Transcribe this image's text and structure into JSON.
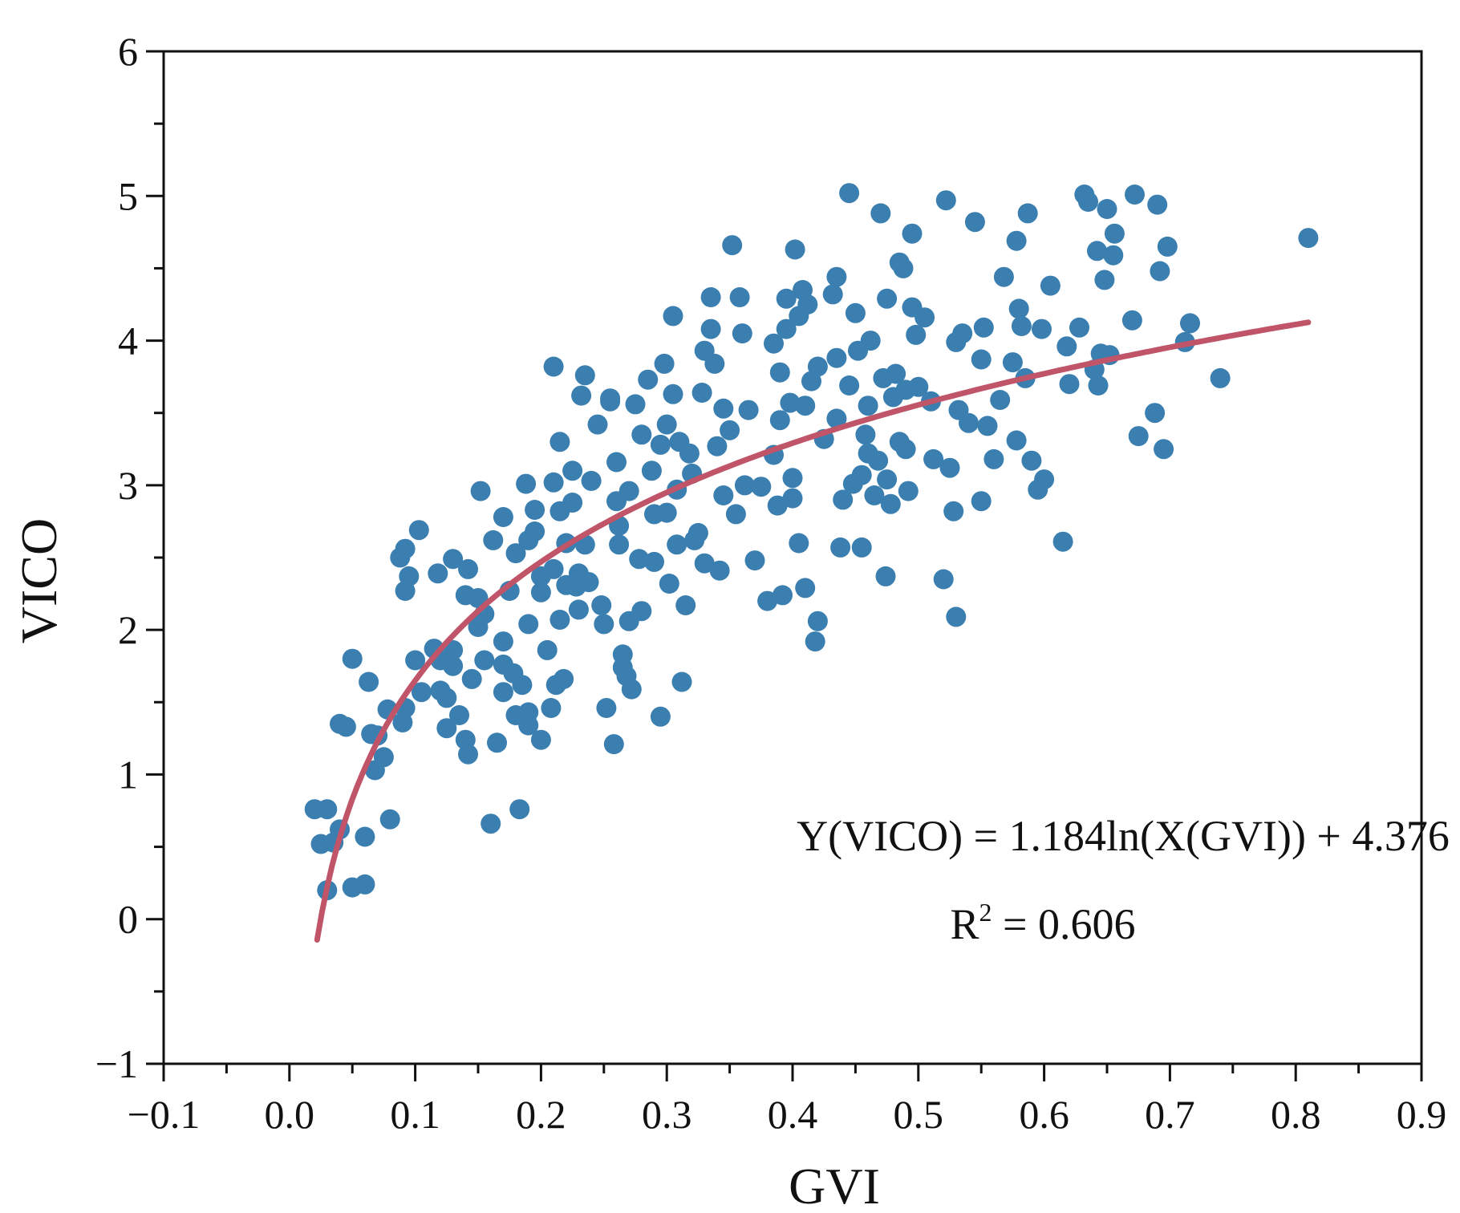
{
  "chart_data": {
    "type": "scatter",
    "title": "",
    "xlabel": "GVI",
    "ylabel": "VICO",
    "xlim": [
      -0.1,
      0.9
    ],
    "ylim": [
      -1,
      6
    ],
    "xticks": [
      "−0.1",
      "0.0",
      "0.1",
      "0.2",
      "0.3",
      "0.4",
      "0.5",
      "0.6",
      "0.7",
      "0.8",
      "0.9"
    ],
    "yticks": [
      "−1",
      "0",
      "1",
      "2",
      "3",
      "4",
      "5",
      "6"
    ],
    "grid": false,
    "point_color": "#3a7fb0",
    "fit_color": "#c05468",
    "fit": {
      "model": "logarithmic",
      "a": 1.184,
      "b": 4.376,
      "x_range": [
        0.022,
        0.81
      ],
      "equation": "Y(VICO) = 1.184ln(X(GVI)) + 4.376",
      "r2_prefix": "R",
      "r2_sup": "2",
      "r2_value": " = 0.606"
    },
    "series": [
      {
        "name": "observations",
        "points": [
          [
            0.02,
            0.76
          ],
          [
            0.03,
            0.76
          ],
          [
            0.025,
            0.52
          ],
          [
            0.035,
            0.53
          ],
          [
            0.04,
            0.62
          ],
          [
            0.06,
            0.57
          ],
          [
            0.03,
            0.2
          ],
          [
            0.05,
            0.22
          ],
          [
            0.06,
            0.24
          ],
          [
            0.04,
            1.35
          ],
          [
            0.045,
            1.33
          ],
          [
            0.05,
            1.8
          ],
          [
            0.063,
            1.64
          ],
          [
            0.065,
            1.28
          ],
          [
            0.07,
            1.27
          ],
          [
            0.068,
            1.03
          ],
          [
            0.075,
            1.12
          ],
          [
            0.08,
            0.69
          ],
          [
            0.078,
            1.45
          ],
          [
            0.09,
            1.36
          ],
          [
            0.092,
            1.46
          ],
          [
            0.088,
            2.5
          ],
          [
            0.092,
            2.56
          ],
          [
            0.095,
            2.37
          ],
          [
            0.092,
            2.27
          ],
          [
            0.103,
            2.69
          ],
          [
            0.1,
            1.79
          ],
          [
            0.105,
            1.57
          ],
          [
            0.115,
            1.87
          ],
          [
            0.118,
            2.39
          ],
          [
            0.12,
            1.79
          ],
          [
            0.12,
            1.58
          ],
          [
            0.125,
            1.53
          ],
          [
            0.125,
            1.32
          ],
          [
            0.13,
            2.49
          ],
          [
            0.13,
            1.86
          ],
          [
            0.13,
            1.75
          ],
          [
            0.135,
            1.41
          ],
          [
            0.14,
            1.24
          ],
          [
            0.142,
            1.14
          ],
          [
            0.14,
            2.24
          ],
          [
            0.142,
            2.42
          ],
          [
            0.145,
            1.66
          ],
          [
            0.15,
            2.22
          ],
          [
            0.15,
            2.02
          ],
          [
            0.152,
            2.96
          ],
          [
            0.155,
            1.79
          ],
          [
            0.155,
            2.11
          ],
          [
            0.16,
            0.66
          ],
          [
            0.162,
            2.62
          ],
          [
            0.165,
            1.22
          ],
          [
            0.17,
            1.92
          ],
          [
            0.17,
            1.76
          ],
          [
            0.17,
            1.57
          ],
          [
            0.17,
            2.78
          ],
          [
            0.175,
            2.27
          ],
          [
            0.178,
            1.7
          ],
          [
            0.18,
            1.41
          ],
          [
            0.18,
            2.53
          ],
          [
            0.183,
            0.76
          ],
          [
            0.185,
            1.62
          ],
          [
            0.19,
            1.43
          ],
          [
            0.19,
            1.34
          ],
          [
            0.19,
            2.04
          ],
          [
            0.188,
            3.01
          ],
          [
            0.19,
            2.62
          ],
          [
            0.195,
            2.83
          ],
          [
            0.195,
            2.68
          ],
          [
            0.2,
            2.37
          ],
          [
            0.2,
            2.26
          ],
          [
            0.2,
            1.24
          ],
          [
            0.205,
            1.86
          ],
          [
            0.208,
            1.46
          ],
          [
            0.21,
            3.02
          ],
          [
            0.21,
            2.42
          ],
          [
            0.212,
            1.62
          ],
          [
            0.215,
            3.3
          ],
          [
            0.215,
            2.82
          ],
          [
            0.215,
            2.07
          ],
          [
            0.218,
            1.66
          ],
          [
            0.22,
            2.6
          ],
          [
            0.22,
            2.31
          ],
          [
            0.225,
            2.88
          ],
          [
            0.225,
            3.1
          ],
          [
            0.228,
            2.3
          ],
          [
            0.23,
            2.39
          ],
          [
            0.23,
            2.14
          ],
          [
            0.21,
            3.82
          ],
          [
            0.232,
            3.62
          ],
          [
            0.235,
            3.76
          ],
          [
            0.235,
            2.59
          ],
          [
            0.238,
            2.33
          ],
          [
            0.24,
            3.03
          ],
          [
            0.245,
            3.42
          ],
          [
            0.248,
            2.17
          ],
          [
            0.25,
            2.04
          ],
          [
            0.252,
            1.46
          ],
          [
            0.255,
            3.6
          ],
          [
            0.255,
            3.58
          ],
          [
            0.258,
            1.21
          ],
          [
            0.26,
            3.16
          ],
          [
            0.26,
            2.89
          ],
          [
            0.262,
            2.72
          ],
          [
            0.262,
            2.59
          ],
          [
            0.265,
            1.83
          ],
          [
            0.265,
            1.74
          ],
          [
            0.268,
            1.68
          ],
          [
            0.27,
            2.96
          ],
          [
            0.27,
            2.06
          ],
          [
            0.272,
            1.59
          ],
          [
            0.275,
            3.56
          ],
          [
            0.278,
            2.49
          ],
          [
            0.28,
            3.35
          ],
          [
            0.28,
            2.13
          ],
          [
            0.285,
            3.73
          ],
          [
            0.288,
            3.1
          ],
          [
            0.29,
            2.8
          ],
          [
            0.29,
            2.47
          ],
          [
            0.295,
            3.28
          ],
          [
            0.295,
            1.4
          ],
          [
            0.298,
            3.84
          ],
          [
            0.3,
            3.42
          ],
          [
            0.3,
            2.81
          ],
          [
            0.302,
            2.32
          ],
          [
            0.305,
            4.17
          ],
          [
            0.305,
            3.63
          ],
          [
            0.308,
            2.97
          ],
          [
            0.308,
            2.59
          ],
          [
            0.31,
            3.3
          ],
          [
            0.312,
            1.64
          ],
          [
            0.315,
            2.17
          ],
          [
            0.318,
            3.22
          ],
          [
            0.32,
            3.08
          ],
          [
            0.322,
            2.62
          ],
          [
            0.325,
            2.67
          ],
          [
            0.328,
            3.64
          ],
          [
            0.33,
            3.93
          ],
          [
            0.33,
            2.46
          ],
          [
            0.335,
            4.3
          ],
          [
            0.335,
            4.08
          ],
          [
            0.338,
            3.84
          ],
          [
            0.34,
            3.27
          ],
          [
            0.342,
            2.41
          ],
          [
            0.345,
            3.53
          ],
          [
            0.345,
            2.93
          ],
          [
            0.35,
            3.38
          ],
          [
            0.352,
            4.66
          ],
          [
            0.355,
            2.8
          ],
          [
            0.358,
            4.3
          ],
          [
            0.36,
            4.05
          ],
          [
            0.362,
            3.0
          ],
          [
            0.365,
            3.52
          ],
          [
            0.37,
            2.48
          ],
          [
            0.375,
            2.99
          ],
          [
            0.38,
            2.2
          ],
          [
            0.385,
            3.98
          ],
          [
            0.385,
            3.21
          ],
          [
            0.388,
            2.86
          ],
          [
            0.39,
            3.78
          ],
          [
            0.39,
            3.45
          ],
          [
            0.392,
            2.24
          ],
          [
            0.395,
            4.29
          ],
          [
            0.395,
            4.08
          ],
          [
            0.398,
            3.57
          ],
          [
            0.4,
            3.05
          ],
          [
            0.4,
            2.91
          ],
          [
            0.402,
            4.63
          ],
          [
            0.405,
            4.17
          ],
          [
            0.405,
            2.6
          ],
          [
            0.408,
            4.35
          ],
          [
            0.41,
            2.29
          ],
          [
            0.41,
            3.55
          ],
          [
            0.412,
            4.25
          ],
          [
            0.415,
            3.72
          ],
          [
            0.418,
            1.92
          ],
          [
            0.42,
            3.82
          ],
          [
            0.42,
            2.06
          ],
          [
            0.425,
            3.32
          ],
          [
            0.432,
            4.32
          ],
          [
            0.435,
            4.44
          ],
          [
            0.435,
            3.88
          ],
          [
            0.435,
            3.46
          ],
          [
            0.438,
            2.57
          ],
          [
            0.44,
            2.9
          ],
          [
            0.445,
            5.02
          ],
          [
            0.445,
            3.69
          ],
          [
            0.448,
            3.01
          ],
          [
            0.45,
            4.19
          ],
          [
            0.452,
            3.93
          ],
          [
            0.455,
            3.07
          ],
          [
            0.455,
            2.57
          ],
          [
            0.458,
            3.35
          ],
          [
            0.46,
            3.55
          ],
          [
            0.46,
            3.22
          ],
          [
            0.462,
            4.0
          ],
          [
            0.465,
            2.93
          ],
          [
            0.468,
            3.17
          ],
          [
            0.47,
            4.88
          ],
          [
            0.472,
            3.74
          ],
          [
            0.474,
            2.37
          ],
          [
            0.475,
            4.29
          ],
          [
            0.475,
            3.04
          ],
          [
            0.478,
            2.87
          ],
          [
            0.48,
            3.61
          ],
          [
            0.482,
            3.77
          ],
          [
            0.485,
            3.3
          ],
          [
            0.485,
            4.54
          ],
          [
            0.488,
            4.5
          ],
          [
            0.49,
            3.66
          ],
          [
            0.49,
            3.25
          ],
          [
            0.492,
            2.96
          ],
          [
            0.495,
            4.74
          ],
          [
            0.495,
            4.23
          ],
          [
            0.498,
            4.04
          ],
          [
            0.5,
            3.68
          ],
          [
            0.505,
            4.16
          ],
          [
            0.51,
            3.58
          ],
          [
            0.512,
            3.18
          ],
          [
            0.52,
            2.35
          ],
          [
            0.522,
            4.97
          ],
          [
            0.525,
            3.12
          ],
          [
            0.528,
            2.82
          ],
          [
            0.53,
            2.09
          ],
          [
            0.53,
            3.99
          ],
          [
            0.532,
            3.52
          ],
          [
            0.535,
            4.05
          ],
          [
            0.54,
            3.43
          ],
          [
            0.545,
            4.82
          ],
          [
            0.55,
            3.87
          ],
          [
            0.55,
            2.89
          ],
          [
            0.552,
            4.09
          ],
          [
            0.555,
            3.41
          ],
          [
            0.56,
            3.18
          ],
          [
            0.565,
            3.59
          ],
          [
            0.568,
            4.44
          ],
          [
            0.575,
            3.85
          ],
          [
            0.578,
            4.69
          ],
          [
            0.578,
            3.31
          ],
          [
            0.58,
            4.22
          ],
          [
            0.582,
            4.1
          ],
          [
            0.585,
            3.74
          ],
          [
            0.587,
            4.88
          ],
          [
            0.59,
            3.17
          ],
          [
            0.595,
            2.97
          ],
          [
            0.598,
            4.08
          ],
          [
            0.6,
            3.04
          ],
          [
            0.605,
            4.38
          ],
          [
            0.615,
            2.61
          ],
          [
            0.618,
            3.96
          ],
          [
            0.62,
            3.7
          ],
          [
            0.628,
            4.09
          ],
          [
            0.632,
            5.01
          ],
          [
            0.635,
            4.96
          ],
          [
            0.64,
            3.8
          ],
          [
            0.642,
            4.62
          ],
          [
            0.643,
            3.69
          ],
          [
            0.645,
            3.91
          ],
          [
            0.648,
            4.42
          ],
          [
            0.65,
            4.91
          ],
          [
            0.652,
            3.9
          ],
          [
            0.655,
            4.59
          ],
          [
            0.656,
            4.74
          ],
          [
            0.67,
            4.14
          ],
          [
            0.672,
            5.01
          ],
          [
            0.675,
            3.34
          ],
          [
            0.688,
            3.5
          ],
          [
            0.69,
            4.94
          ],
          [
            0.692,
            4.48
          ],
          [
            0.695,
            3.25
          ],
          [
            0.698,
            4.65
          ],
          [
            0.712,
            3.99
          ],
          [
            0.716,
            4.12
          ],
          [
            0.74,
            3.74
          ],
          [
            0.81,
            4.71
          ]
        ]
      }
    ]
  }
}
